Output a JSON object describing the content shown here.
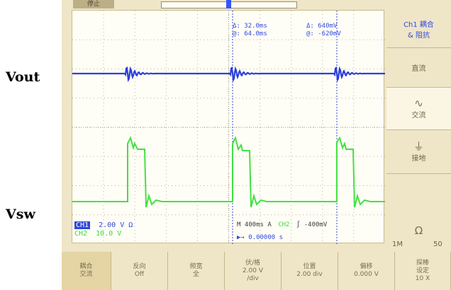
{
  "labels": {
    "vout": "Vout",
    "vsw": "Vsw"
  },
  "status": {
    "state": "停止"
  },
  "cursor_readout": {
    "delta_t": "Δ: 32.0ms",
    "delta_v": "Δ: 640mV",
    "at_t": "@: 64.0ms",
    "at_v": "@: -620mV"
  },
  "channel_info": {
    "ch1_badge": "CH1",
    "ch1_scale": "2.00 V Ω",
    "ch2_label": "CH2",
    "ch2_scale": "10.0 V",
    "timebase": "M 400ms  A",
    "trig_src": "CH2",
    "trig_level": "∫ -400mV",
    "trig_pos": "▶→ 0.00000 s"
  },
  "right_menu": {
    "title": "Ch1 耦合\n& 阻抗",
    "dc": "直流",
    "ac": "交流",
    "gnd": "接地",
    "ohm": "Ω",
    "imp_1m": "1M",
    "imp_50": "50"
  },
  "right_icons": {
    "ac": "ac-wave-icon",
    "gnd": "ground-icon",
    "ohm": "ohm-icon"
  },
  "bottom_menu": [
    {
      "line1": "耦合",
      "line2": "交流",
      "line3": ""
    },
    {
      "line1": "反向",
      "line2": "Off",
      "line3": ""
    },
    {
      "line1": "频宽",
      "line2": "全",
      "line3": ""
    },
    {
      "line1": "伏/格",
      "line2": "2.00 V",
      "line3": "/div"
    },
    {
      "line1": "位置",
      "line2": "2.00 div",
      "line3": ""
    },
    {
      "line1": "偏移",
      "line2": "0.000 V",
      "line3": ""
    },
    {
      "line1": "探棒",
      "line2": "设定",
      "line3": "10 X"
    }
  ],
  "colors": {
    "ch1": "#2b3fdc",
    "ch2": "#43e043",
    "cursor": "#3048e0",
    "background": "#efe5c7",
    "grid": "#b9b1a0"
  }
}
